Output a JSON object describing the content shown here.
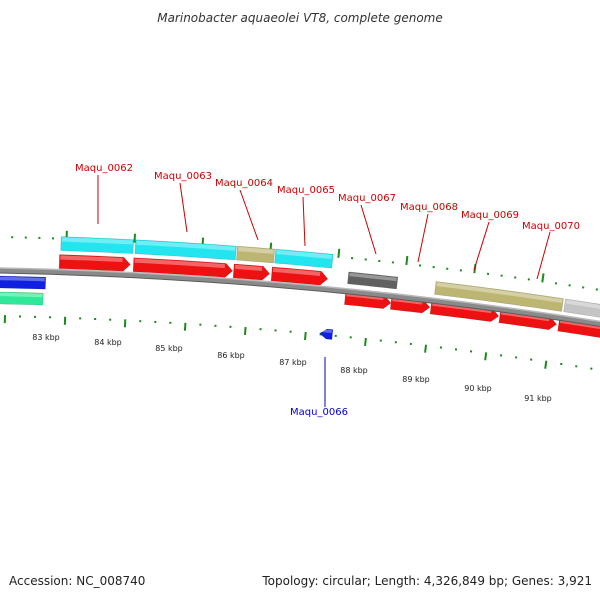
{
  "title": "Marinobacter aquaeolei VT8, complete genome",
  "footer": {
    "accession": "Accession: NC_008740",
    "summary": "Topology: circular; Length: 4,326,849 bp; Genes: 3,921"
  },
  "colors": {
    "label_red": "#cc0000",
    "label_blue": "#0000cc",
    "cds_red": "#ee1111",
    "cyan": "#22e5f0",
    "olive": "#bdb673",
    "dark_gray": "#606060",
    "light_gray": "#c4c4c4",
    "blue": "#1020e0",
    "teal": "#2fe99a",
    "backbone": "#8a8a8a",
    "ticks": "#1a8a1a"
  },
  "gene_labels": [
    {
      "name": "Maqu_0062",
      "color": "red"
    },
    {
      "name": "Maqu_0063",
      "color": "red"
    },
    {
      "name": "Maqu_0064",
      "color": "red"
    },
    {
      "name": "Maqu_0065",
      "color": "red"
    },
    {
      "name": "Maqu_0066",
      "color": "blue"
    },
    {
      "name": "Maqu_0067",
      "color": "red"
    },
    {
      "name": "Maqu_0068",
      "color": "red"
    },
    {
      "name": "Maqu_0069",
      "color": "red"
    },
    {
      "name": "Maqu_0070",
      "color": "red"
    }
  ],
  "kbp_labels": [
    "83 kbp",
    "84 kbp",
    "85 kbp",
    "86 kbp",
    "87 kbp",
    "88 kbp",
    "89 kbp",
    "90 kbp",
    "91 kbp"
  ]
}
